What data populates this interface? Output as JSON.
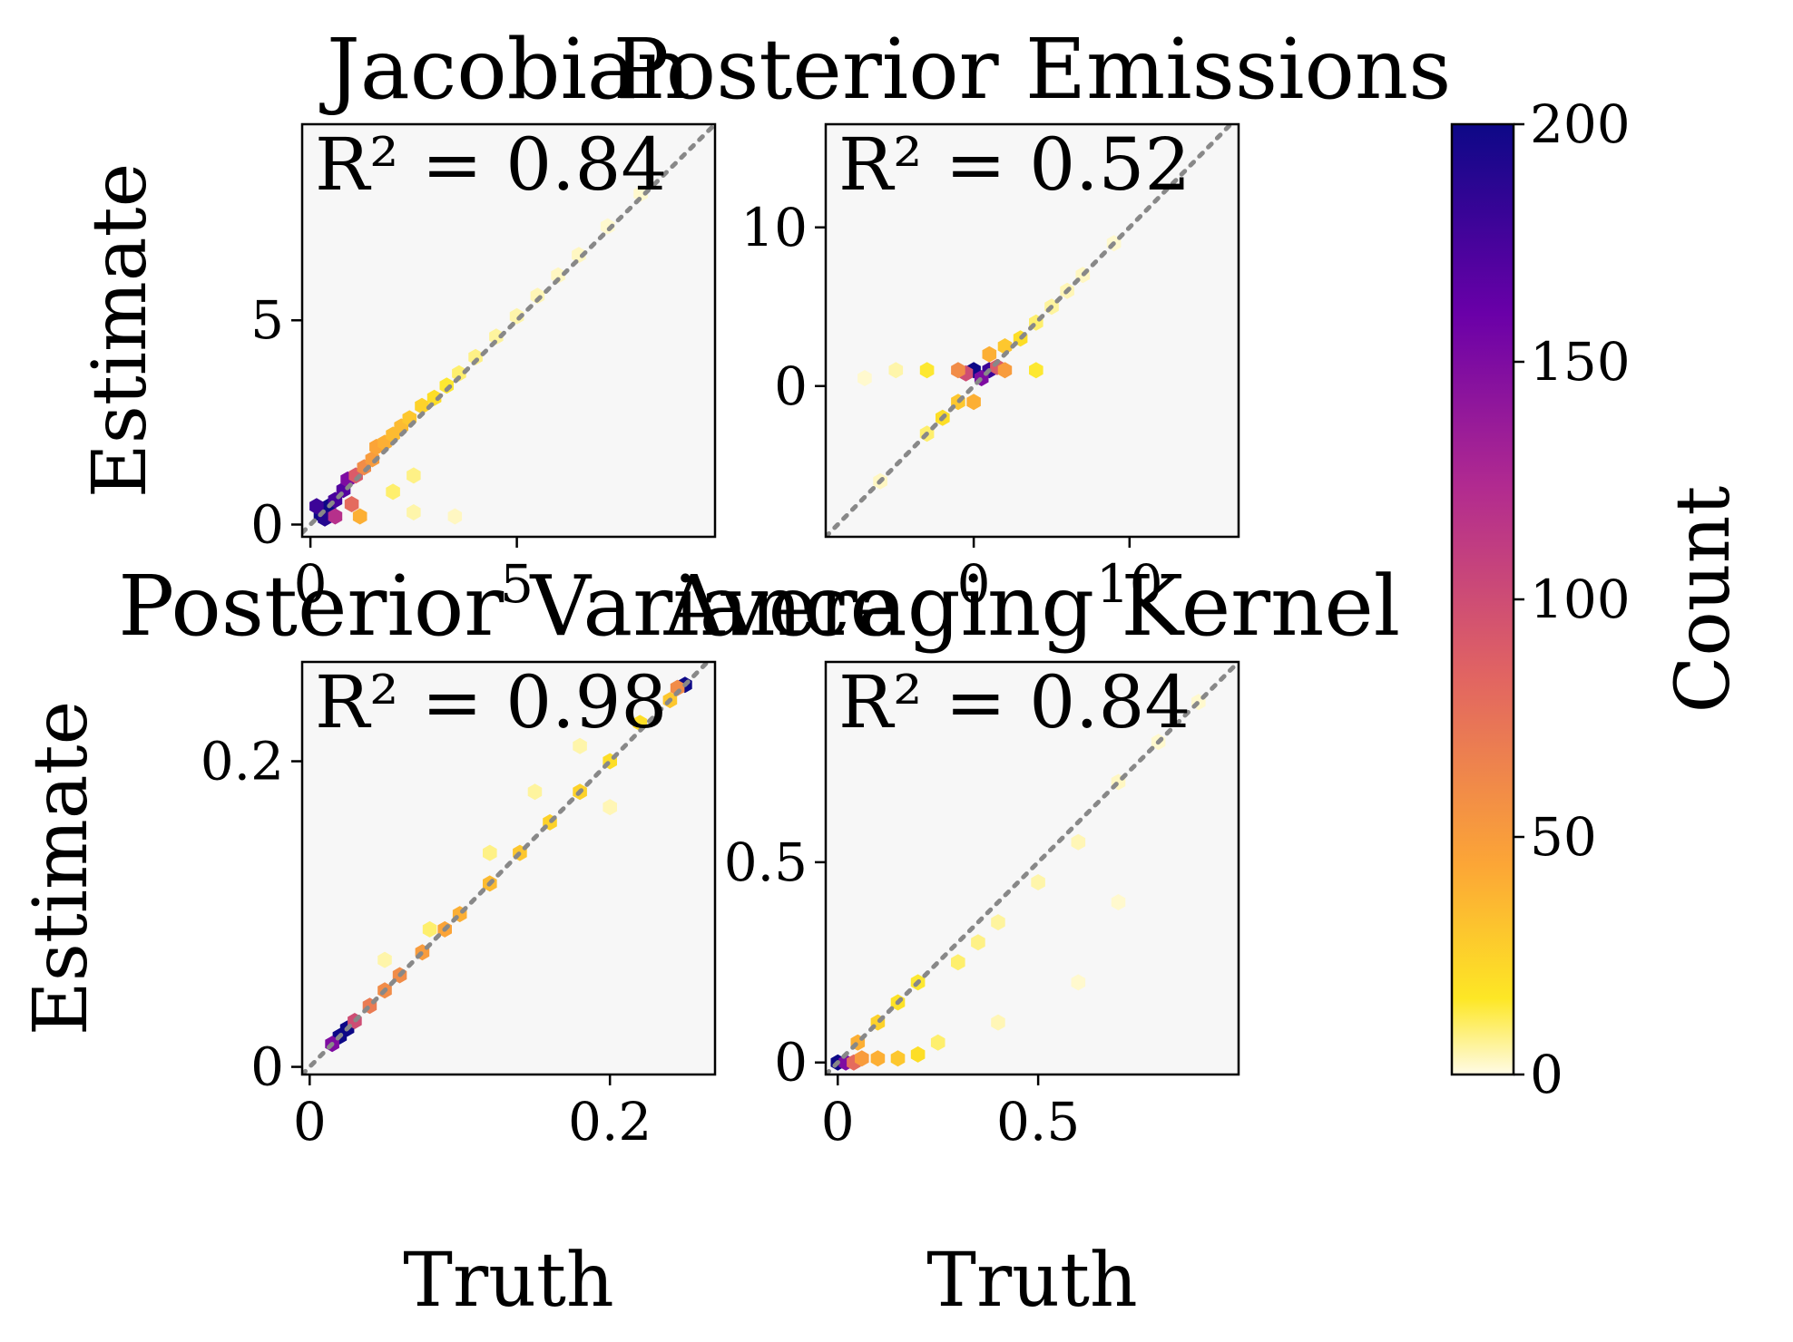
{
  "figure": {
    "colorbar": {
      "label": "Count",
      "ticks": [
        0,
        50,
        100,
        150,
        200
      ],
      "range": [
        0,
        200
      ],
      "colormap": "plasma_r",
      "stops": [
        "#fffbe6",
        "#fde725",
        "#fca636",
        "#e16462",
        "#b12a90",
        "#6a00a8",
        "#0d0887"
      ]
    },
    "background_color": "#f7f7f7",
    "identity_line_color": "#888888"
  },
  "chart_data": [
    {
      "type": "scatter",
      "subtype": "hexbin",
      "title": "Jacobian",
      "annotation": "R² = 0.84",
      "xlabel": "",
      "ylabel": "Estimate",
      "xlim": [
        -0.2,
        9.8
      ],
      "ylim": [
        -0.3,
        9.8
      ],
      "xticks": [
        0,
        5
      ],
      "yticks": [
        0,
        5
      ],
      "identity_line": true,
      "series": [
        {
          "values": [
            {
              "x": 0.25,
              "y": 0.25,
              "count": 200
            },
            {
              "x": 0.45,
              "y": 0.45,
              "count": 200
            },
            {
              "x": 0.35,
              "y": 0.15,
              "count": 190
            },
            {
              "x": 0.15,
              "y": 0.45,
              "count": 180
            },
            {
              "x": 0.6,
              "y": 0.6,
              "count": 175
            },
            {
              "x": 0.8,
              "y": 0.85,
              "count": 170
            },
            {
              "x": 0.9,
              "y": 1.1,
              "count": 150
            },
            {
              "x": 0.6,
              "y": 0.2,
              "count": 120
            },
            {
              "x": 1.0,
              "y": 0.5,
              "count": 80
            },
            {
              "x": 1.1,
              "y": 1.2,
              "count": 90
            },
            {
              "x": 1.3,
              "y": 1.4,
              "count": 60
            },
            {
              "x": 1.5,
              "y": 1.6,
              "count": 50
            },
            {
              "x": 1.2,
              "y": 0.2,
              "count": 40
            },
            {
              "x": 1.6,
              "y": 1.9,
              "count": 45
            },
            {
              "x": 1.8,
              "y": 2.0,
              "count": 40
            },
            {
              "x": 2.0,
              "y": 2.2,
              "count": 35
            },
            {
              "x": 2.2,
              "y": 2.4,
              "count": 35
            },
            {
              "x": 2.4,
              "y": 2.6,
              "count": 30
            },
            {
              "x": 2.7,
              "y": 2.9,
              "count": 25
            },
            {
              "x": 3.0,
              "y": 3.1,
              "count": 20
            },
            {
              "x": 3.3,
              "y": 3.4,
              "count": 15
            },
            {
              "x": 2.0,
              "y": 0.8,
              "count": 10
            },
            {
              "x": 2.5,
              "y": 1.2,
              "count": 8
            },
            {
              "x": 3.6,
              "y": 3.7,
              "count": 10
            },
            {
              "x": 4.0,
              "y": 4.1,
              "count": 8
            },
            {
              "x": 4.5,
              "y": 4.6,
              "count": 6
            },
            {
              "x": 5.0,
              "y": 5.1,
              "count": 5
            },
            {
              "x": 5.5,
              "y": 5.6,
              "count": 4
            },
            {
              "x": 6.0,
              "y": 6.1,
              "count": 3
            },
            {
              "x": 6.5,
              "y": 6.6,
              "count": 3
            },
            {
              "x": 7.2,
              "y": 7.3,
              "count": 2
            },
            {
              "x": 8.0,
              "y": 8.1,
              "count": 2
            },
            {
              "x": 2.5,
              "y": 0.3,
              "count": 5
            },
            {
              "x": 3.5,
              "y": 0.2,
              "count": 3
            }
          ]
        }
      ]
    },
    {
      "type": "scatter",
      "subtype": "hexbin",
      "title": "Posterior Emissions",
      "annotation": "R² = 0.52",
      "xlabel": "",
      "ylabel": "",
      "xlim": [
        -9.5,
        17
      ],
      "ylim": [
        -9.5,
        16.5
      ],
      "xticks": [
        0,
        10
      ],
      "yticks": [
        0,
        10
      ],
      "identity_line": true,
      "series": [
        {
          "values": [
            {
              "x": 0,
              "y": 1,
              "count": 200
            },
            {
              "x": 1,
              "y": 1,
              "count": 180
            },
            {
              "x": 0.5,
              "y": 0.5,
              "count": 150
            },
            {
              "x": -0.5,
              "y": 0.8,
              "count": 100
            },
            {
              "x": 1.5,
              "y": 1.2,
              "count": 90
            },
            {
              "x": -1,
              "y": 1,
              "count": 60
            },
            {
              "x": 2,
              "y": 1,
              "count": 50
            },
            {
              "x": 0,
              "y": -1,
              "count": 40
            },
            {
              "x": 1,
              "y": 2,
              "count": 40
            },
            {
              "x": -1,
              "y": -1,
              "count": 30
            },
            {
              "x": 2,
              "y": 2.5,
              "count": 30
            },
            {
              "x": -2,
              "y": -2,
              "count": 20
            },
            {
              "x": 3,
              "y": 3,
              "count": 20
            },
            {
              "x": -3,
              "y": 1,
              "count": 15
            },
            {
              "x": 4,
              "y": 1,
              "count": 15
            },
            {
              "x": -3,
              "y": -3,
              "count": 10
            },
            {
              "x": 4,
              "y": 4,
              "count": 10
            },
            {
              "x": -5,
              "y": 1,
              "count": 5
            },
            {
              "x": 5,
              "y": 5,
              "count": 6
            },
            {
              "x": 6,
              "y": 6,
              "count": 4
            },
            {
              "x": -6,
              "y": -6,
              "count": 3
            },
            {
              "x": 7,
              "y": 7,
              "count": 3
            },
            {
              "x": 9,
              "y": 9,
              "count": 2
            },
            {
              "x": -7,
              "y": 0.5,
              "count": 2
            }
          ]
        }
      ]
    },
    {
      "type": "scatter",
      "subtype": "hexbin",
      "title": "Posterior Variance",
      "annotation": "R² = 0.98",
      "xlabel": "Truth",
      "ylabel": "Estimate",
      "xlim": [
        -0.005,
        0.27
      ],
      "ylim": [
        -0.005,
        0.265
      ],
      "xticks": [
        0.0,
        0.2
      ],
      "yticks": [
        0.0,
        0.2
      ],
      "identity_line": true,
      "series": [
        {
          "values": [
            {
              "x": 0.02,
              "y": 0.02,
              "count": 200
            },
            {
              "x": 0.025,
              "y": 0.025,
              "count": 200
            },
            {
              "x": 0.015,
              "y": 0.015,
              "count": 150
            },
            {
              "x": 0.03,
              "y": 0.03,
              "count": 100
            },
            {
              "x": 0.04,
              "y": 0.04,
              "count": 70
            },
            {
              "x": 0.05,
              "y": 0.05,
              "count": 60
            },
            {
              "x": 0.06,
              "y": 0.06,
              "count": 60
            },
            {
              "x": 0.075,
              "y": 0.075,
              "count": 50
            },
            {
              "x": 0.09,
              "y": 0.09,
              "count": 45
            },
            {
              "x": 0.1,
              "y": 0.1,
              "count": 40
            },
            {
              "x": 0.12,
              "y": 0.12,
              "count": 35
            },
            {
              "x": 0.14,
              "y": 0.14,
              "count": 30
            },
            {
              "x": 0.16,
              "y": 0.16,
              "count": 25
            },
            {
              "x": 0.18,
              "y": 0.18,
              "count": 25
            },
            {
              "x": 0.2,
              "y": 0.2,
              "count": 20
            },
            {
              "x": 0.22,
              "y": 0.225,
              "count": 20
            },
            {
              "x": 0.24,
              "y": 0.24,
              "count": 30
            },
            {
              "x": 0.25,
              "y": 0.25,
              "count": 200
            },
            {
              "x": 0.245,
              "y": 0.248,
              "count": 60
            },
            {
              "x": 0.08,
              "y": 0.09,
              "count": 10
            },
            {
              "x": 0.12,
              "y": 0.14,
              "count": 8
            },
            {
              "x": 0.15,
              "y": 0.18,
              "count": 6
            },
            {
              "x": 0.18,
              "y": 0.21,
              "count": 5
            },
            {
              "x": 0.2,
              "y": 0.17,
              "count": 4
            },
            {
              "x": 0.05,
              "y": 0.07,
              "count": 5
            }
          ]
        }
      ]
    },
    {
      "type": "scatter",
      "subtype": "hexbin",
      "title": "Averaging Kernel",
      "annotation": "R² = 0.84",
      "xlabel": "Truth",
      "ylabel": "",
      "xlim": [
        -0.03,
        1.0
      ],
      "ylim": [
        -0.03,
        1.0
      ],
      "xticks": [
        0.0,
        0.5
      ],
      "yticks": [
        0.0,
        0.5
      ],
      "identity_line": true,
      "series": [
        {
          "values": [
            {
              "x": 0.0,
              "y": 0.0,
              "count": 200
            },
            {
              "x": 0.02,
              "y": 0.0,
              "count": 150
            },
            {
              "x": 0.04,
              "y": 0.0,
              "count": 80
            },
            {
              "x": 0.06,
              "y": 0.01,
              "count": 50
            },
            {
              "x": 0.1,
              "y": 0.01,
              "count": 40
            },
            {
              "x": 0.05,
              "y": 0.05,
              "count": 40
            },
            {
              "x": 0.15,
              "y": 0.01,
              "count": 30
            },
            {
              "x": 0.1,
              "y": 0.1,
              "count": 25
            },
            {
              "x": 0.2,
              "y": 0.02,
              "count": 20
            },
            {
              "x": 0.15,
              "y": 0.15,
              "count": 18
            },
            {
              "x": 0.2,
              "y": 0.2,
              "count": 15
            },
            {
              "x": 0.25,
              "y": 0.05,
              "count": 10
            },
            {
              "x": 0.3,
              "y": 0.25,
              "count": 10
            },
            {
              "x": 0.35,
              "y": 0.3,
              "count": 8
            },
            {
              "x": 0.4,
              "y": 0.35,
              "count": 6
            },
            {
              "x": 0.5,
              "y": 0.45,
              "count": 5
            },
            {
              "x": 0.4,
              "y": 0.1,
              "count": 4
            },
            {
              "x": 0.6,
              "y": 0.55,
              "count": 4
            },
            {
              "x": 0.7,
              "y": 0.7,
              "count": 3
            },
            {
              "x": 0.8,
              "y": 0.8,
              "count": 2
            },
            {
              "x": 0.9,
              "y": 0.9,
              "count": 2
            },
            {
              "x": 0.6,
              "y": 0.2,
              "count": 2
            },
            {
              "x": 0.7,
              "y": 0.4,
              "count": 2
            }
          ]
        }
      ]
    }
  ]
}
